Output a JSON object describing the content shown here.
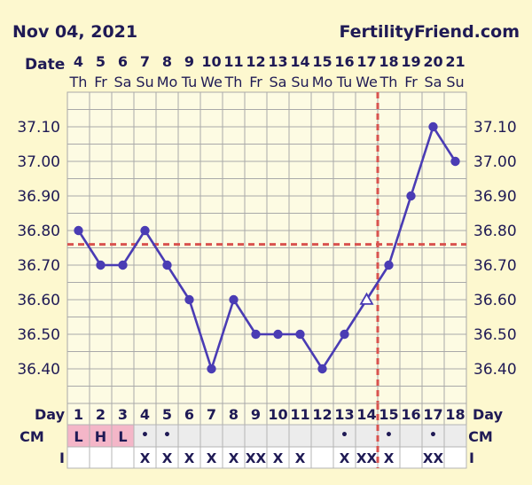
{
  "header": {
    "date_title": "Nov 04, 2021",
    "site_name": "FertilityFriend.com"
  },
  "colors": {
    "background": "#fdf8cf",
    "grid_bg": "#fdfbe3",
    "grid_line": "#a9a9a9",
    "series": "#4a3cb4",
    "dashed_line": "#d9534f",
    "text": "#1f1a55",
    "cell_pink": "#f4b6c8",
    "cell_gray": "#ececec"
  },
  "labels": {
    "date_label": "Date",
    "day_label": "Day",
    "cm_label": "CM",
    "i_label": "I"
  },
  "chart_data": {
    "type": "line",
    "title": "Nov 04, 2021",
    "x_dates": [
      "4",
      "5",
      "6",
      "7",
      "8",
      "9",
      "10",
      "11",
      "12",
      "13",
      "14",
      "15",
      "16",
      "17",
      "18",
      "19",
      "20",
      "21"
    ],
    "x_weekdays": [
      "Th",
      "Fr",
      "Sa",
      "Su",
      "Mo",
      "Tu",
      "We",
      "Th",
      "Fr",
      "Sa",
      "Su",
      "Mo",
      "Tu",
      "We",
      "Th",
      "Fr",
      "Sa",
      "Su"
    ],
    "cycle_days": [
      "1",
      "2",
      "3",
      "4",
      "5",
      "6",
      "7",
      "8",
      "9",
      "10",
      "11",
      "12",
      "13",
      "14",
      "15",
      "16",
      "17",
      "18"
    ],
    "y_ticks": [
      "37.10",
      "37.00",
      "36.90",
      "36.80",
      "36.70",
      "36.60",
      "36.50",
      "36.40"
    ],
    "ylim": [
      36.3,
      37.2
    ],
    "series": [
      {
        "name": "Temperature",
        "values": [
          36.8,
          36.7,
          36.7,
          36.8,
          36.7,
          36.6,
          36.4,
          36.6,
          36.5,
          36.5,
          36.5,
          36.4,
          36.5,
          36.6,
          36.7,
          36.9,
          37.1,
          37.0
        ],
        "markers": [
          "circle",
          "circle",
          "circle",
          "circle",
          "circle",
          "circle",
          "circle",
          "circle",
          "circle",
          "circle",
          "circle",
          "circle",
          "circle",
          "triangle-open",
          "circle",
          "circle",
          "circle",
          "circle"
        ]
      }
    ],
    "coverline": 36.76,
    "ovulation_day_index": 14,
    "cm_row": [
      "L",
      "H",
      "L",
      "•",
      "•",
      "",
      "",
      "",
      "",
      "",
      "",
      "",
      "•",
      "",
      "•",
      "",
      "•",
      ""
    ],
    "i_row": [
      "",
      "",
      "",
      "X",
      "X",
      "X",
      "X",
      "X",
      "XX",
      "X",
      "X",
      "",
      "X",
      "XX",
      "X",
      "",
      "XX",
      ""
    ]
  }
}
